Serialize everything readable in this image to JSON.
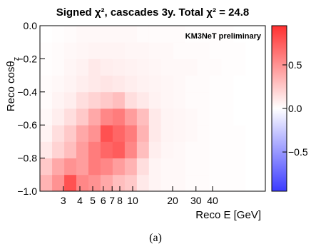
{
  "chart_data": {
    "type": "heatmap",
    "title": "Signed χ², cascades 3y. Total χ² = 24.8",
    "xlabel": "Reco E [GeV]",
    "ylabel": "Reco cosθz",
    "annotation": "KM3NeT preliminary",
    "caption": "(a)",
    "x_scale": "log",
    "x_bin_edges": [
      2.0,
      2.47,
      3.05,
      3.76,
      4.64,
      5.72,
      7.06,
      8.71,
      10.75,
      13.26,
      16.36,
      20.19,
      24.91,
      30.74,
      37.93,
      46.8,
      57.74,
      71.25,
      87.9,
      100.0
    ],
    "y_bin_edges": [
      -1.0,
      -0.9,
      -0.8,
      -0.7,
      -0.6,
      -0.5,
      -0.4,
      -0.3,
      -0.2,
      -0.1,
      0.0
    ],
    "xlim": [
      2.0,
      100.0
    ],
    "ylim": [
      -1.0,
      0.0
    ],
    "x_tick_values": [
      3,
      4,
      5,
      6,
      7,
      8,
      10,
      20,
      30,
      40
    ],
    "x_tick_labels": [
      "3",
      "4",
      "5",
      "6",
      "7",
      "8",
      "10",
      "20",
      "30",
      "40"
    ],
    "y_tick_values": [
      -1.0,
      -0.8,
      -0.6,
      -0.4,
      -0.2,
      0.0
    ],
    "y_tick_labels": [
      "−1.0",
      "−0.8",
      "−0.6",
      "−0.4",
      "−0.2",
      "0.0"
    ],
    "colorbar": {
      "range": [
        -0.95,
        0.95
      ],
      "tick_values": [
        -0.5,
        0.0,
        0.5
      ],
      "tick_labels": [
        "−0.5",
        "0.0",
        "0.5"
      ],
      "negative_color": "#3b3bff",
      "zero_color": "#ffffff",
      "positive_color": "#ff3030"
    },
    "values": [
      [
        0.35,
        0.5,
        0.8,
        0.55,
        0.5,
        0.4,
        0.3,
        0.25,
        0.1,
        0.05,
        0.03,
        0.03,
        0.02,
        0.02,
        0.01,
        0.01,
        0.01,
        0.0,
        0.0
      ],
      [
        0.25,
        0.4,
        0.5,
        0.45,
        0.6,
        0.55,
        0.45,
        0.35,
        0.15,
        0.05,
        0.03,
        0.03,
        0.02,
        0.02,
        0.01,
        0.01,
        0.01,
        0.0,
        0.0
      ],
      [
        0.1,
        0.2,
        0.3,
        0.45,
        0.6,
        0.7,
        0.75,
        0.55,
        0.3,
        0.08,
        0.04,
        0.03,
        0.02,
        0.02,
        0.01,
        0.01,
        0.01,
        0.0,
        0.0
      ],
      [
        0.05,
        0.15,
        0.25,
        0.4,
        0.5,
        0.8,
        0.7,
        0.6,
        0.35,
        0.1,
        0.05,
        0.04,
        0.03,
        0.02,
        0.01,
        0.01,
        0.01,
        0.0,
        0.0
      ],
      [
        0.03,
        0.08,
        0.15,
        0.25,
        0.4,
        0.55,
        0.6,
        0.45,
        0.3,
        0.1,
        0.05,
        0.04,
        0.03,
        0.02,
        0.01,
        0.01,
        0.0,
        0.0,
        0.0
      ],
      [
        0.02,
        0.05,
        0.08,
        0.15,
        0.2,
        0.25,
        0.3,
        0.15,
        0.1,
        0.06,
        0.04,
        0.03,
        0.02,
        0.02,
        0.01,
        0.01,
        0.0,
        0.0,
        0.0
      ],
      [
        0.02,
        0.03,
        0.05,
        0.08,
        0.1,
        0.12,
        0.1,
        0.08,
        0.06,
        0.05,
        0.04,
        0.03,
        0.02,
        0.02,
        0.01,
        0.01,
        0.0,
        0.0,
        0.0
      ],
      [
        0.01,
        0.02,
        0.04,
        0.06,
        0.1,
        0.08,
        0.07,
        0.06,
        0.05,
        0.04,
        0.03,
        0.03,
        0.03,
        0.02,
        0.02,
        0.01,
        0.01,
        0.0,
        0.0
      ],
      [
        0.01,
        0.02,
        0.03,
        0.04,
        0.05,
        0.05,
        0.05,
        0.04,
        0.04,
        0.03,
        0.03,
        0.02,
        0.02,
        0.02,
        0.01,
        0.01,
        0.01,
        0.0,
        0.0
      ],
      [
        0.0,
        0.01,
        0.02,
        0.03,
        0.03,
        0.03,
        0.03,
        0.03,
        0.02,
        0.02,
        0.02,
        0.02,
        0.01,
        0.01,
        0.01,
        0.01,
        0.0,
        0.0,
        0.0
      ]
    ]
  }
}
